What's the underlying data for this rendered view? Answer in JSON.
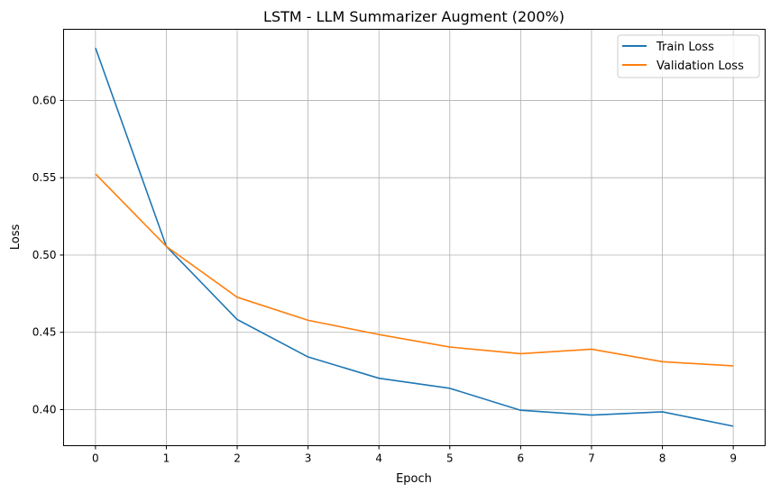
{
  "chart_data": {
    "type": "line",
    "title": "LSTM - LLM Summarizer Augment (200%)",
    "xlabel": "Epoch",
    "ylabel": "Loss",
    "x": [
      0,
      1,
      2,
      3,
      4,
      5,
      6,
      7,
      8,
      9
    ],
    "xticks": [
      "0",
      "1",
      "2",
      "3",
      "4",
      "5",
      "6",
      "7",
      "8",
      "9"
    ],
    "yticks": [
      "0.40",
      "0.45",
      "0.50",
      "0.55",
      "0.60"
    ],
    "xlim": [
      -0.45,
      9.45
    ],
    "ylim": [
      0.3767,
      0.646
    ],
    "grid": true,
    "legend_position": "top-right",
    "series": [
      {
        "name": "Train Loss",
        "color": "#1f77b4",
        "values": [
          0.634,
          0.5056,
          0.4583,
          0.4341,
          0.4203,
          0.4138,
          0.3996,
          0.3965,
          0.3986,
          0.3893
        ]
      },
      {
        "name": "Validation Loss",
        "color": "#ff7f0e",
        "values": [
          0.5525,
          0.5056,
          0.4727,
          0.4578,
          0.4486,
          0.4405,
          0.4362,
          0.4391,
          0.431,
          0.4283
        ]
      }
    ]
  }
}
